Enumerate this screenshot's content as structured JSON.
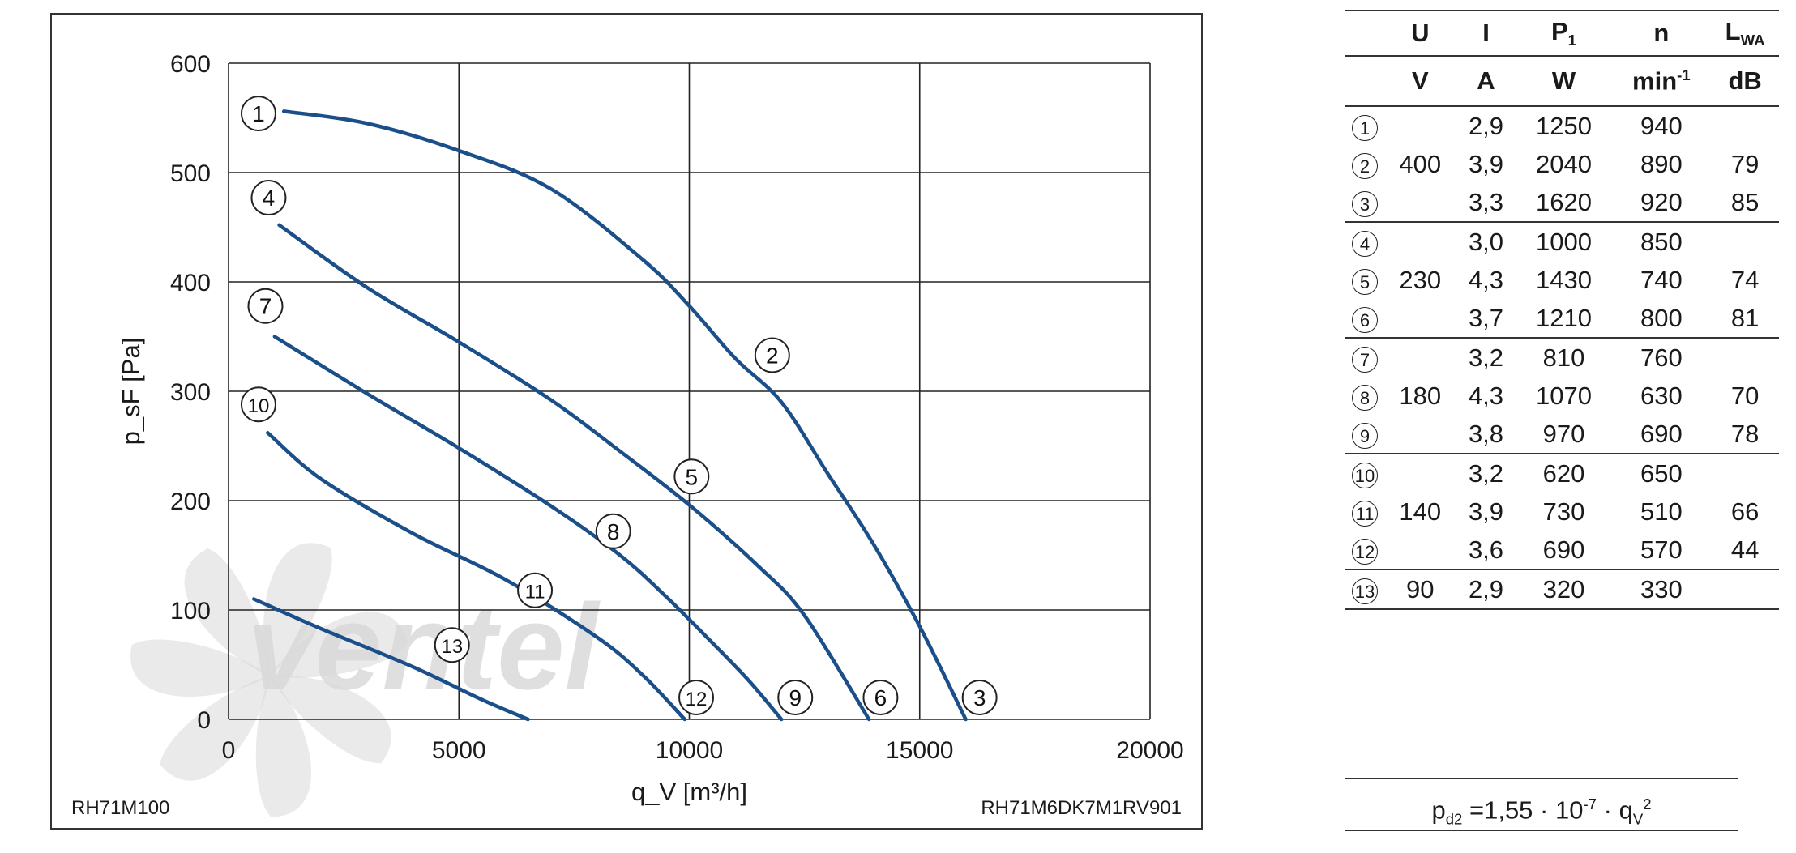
{
  "chart_data": {
    "type": "line",
    "xlabel": "q_V [m³/h]",
    "ylabel": "p_sF [Pa]",
    "xlim": [
      0,
      20000
    ],
    "ylim": [
      0,
      600
    ],
    "x_ticks": [
      "0",
      "5000",
      "10000",
      "15000",
      "20000"
    ],
    "y_ticks": [
      "0",
      "100",
      "200",
      "300",
      "400",
      "500",
      "600"
    ],
    "grid": true,
    "watermark": "ventel",
    "caption_left": "RH71M100",
    "caption_right": "RH71M6DK7M1RV901",
    "colors": {
      "curve": "#1b4f8a",
      "grid": "#222222",
      "watermark": "#d8d8d8",
      "watermark_accent": "#cfe3f4"
    },
    "series": [
      {
        "name": "1-2-3",
        "points": [
          [
            1200,
            556
          ],
          [
            3000,
            545
          ],
          [
            5000,
            520
          ],
          [
            7000,
            485
          ],
          [
            9000,
            420
          ],
          [
            10000,
            378
          ],
          [
            11000,
            330
          ],
          [
            12000,
            290
          ],
          [
            13000,
            225
          ],
          [
            14000,
            160
          ],
          [
            15000,
            85
          ],
          [
            16000,
            0
          ]
        ]
      },
      {
        "name": "4-5-6",
        "points": [
          [
            1100,
            452
          ],
          [
            3000,
            395
          ],
          [
            5000,
            345
          ],
          [
            7000,
            292
          ],
          [
            8500,
            245
          ],
          [
            10000,
            196
          ],
          [
            11500,
            140
          ],
          [
            12500,
            95
          ],
          [
            13900,
            0
          ]
        ]
      },
      {
        "name": "7-8-9",
        "points": [
          [
            1000,
            350
          ],
          [
            3000,
            298
          ],
          [
            5000,
            248
          ],
          [
            7000,
            195
          ],
          [
            8500,
            150
          ],
          [
            9500,
            112
          ],
          [
            10500,
            70
          ],
          [
            11300,
            35
          ],
          [
            12000,
            0
          ]
        ]
      },
      {
        "name": "10-11-12",
        "points": [
          [
            850,
            262
          ],
          [
            2000,
            220
          ],
          [
            4000,
            170
          ],
          [
            6000,
            128
          ],
          [
            8000,
            75
          ],
          [
            9000,
            40
          ],
          [
            9900,
            0
          ]
        ]
      },
      {
        "name": "13",
        "points": [
          [
            550,
            110
          ],
          [
            2000,
            83
          ],
          [
            4000,
            48
          ],
          [
            5500,
            18
          ],
          [
            6500,
            0
          ]
        ]
      }
    ],
    "markers": [
      {
        "label": "1",
        "x": 650,
        "y": 554
      },
      {
        "label": "4",
        "x": 870,
        "y": 477
      },
      {
        "label": "7",
        "x": 800,
        "y": 378
      },
      {
        "label": "10",
        "x": 650,
        "y": 288
      },
      {
        "label": "2",
        "x": 11800,
        "y": 333
      },
      {
        "label": "5",
        "x": 10050,
        "y": 222
      },
      {
        "label": "8",
        "x": 8350,
        "y": 172
      },
      {
        "label": "11",
        "x": 6650,
        "y": 118
      },
      {
        "label": "13",
        "x": 4850,
        "y": 68
      },
      {
        "label": "12",
        "x": 10150,
        "y": 20
      },
      {
        "label": "9",
        "x": 12300,
        "y": 20
      },
      {
        "label": "6",
        "x": 14150,
        "y": 20
      },
      {
        "label": "3",
        "x": 16300,
        "y": 20
      }
    ]
  },
  "table": {
    "headers": [
      "U",
      "I",
      "P1",
      "n",
      "LWA"
    ],
    "units": [
      "V",
      "A",
      "W",
      "min-1",
      "dB"
    ],
    "rows": [
      {
        "id": "1",
        "U": "",
        "I": "2,9",
        "P": "1250",
        "n": "940",
        "L": ""
      },
      {
        "id": "2",
        "U": "400",
        "I": "3,9",
        "P": "2040",
        "n": "890",
        "L": "79"
      },
      {
        "id": "3",
        "U": "",
        "I": "3,3",
        "P": "1620",
        "n": "920",
        "L": "85"
      },
      {
        "id": "4",
        "U": "",
        "I": "3,0",
        "P": "1000",
        "n": "850",
        "L": ""
      },
      {
        "id": "5",
        "U": "230",
        "I": "4,3",
        "P": "1430",
        "n": "740",
        "L": "74"
      },
      {
        "id": "6",
        "U": "",
        "I": "3,7",
        "P": "1210",
        "n": "800",
        "L": "81"
      },
      {
        "id": "7",
        "U": "",
        "I": "3,2",
        "P": "810",
        "n": "760",
        "L": ""
      },
      {
        "id": "8",
        "U": "180",
        "I": "4,3",
        "P": "1070",
        "n": "630",
        "L": "70"
      },
      {
        "id": "9",
        "U": "",
        "I": "3,8",
        "P": "970",
        "n": "690",
        "L": "78"
      },
      {
        "id": "10",
        "U": "",
        "I": "3,2",
        "P": "620",
        "n": "650",
        "L": ""
      },
      {
        "id": "11",
        "U": "140",
        "I": "3,9",
        "P": "730",
        "n": "510",
        "L": "66"
      },
      {
        "id": "12",
        "U": "",
        "I": "3,6",
        "P": "690",
        "n": "570",
        "L": "44"
      },
      {
        "id": "13",
        "U": "90",
        "I": "2,9",
        "P": "320",
        "n": "330",
        "L": ""
      }
    ],
    "group_ends": [
      2,
      5,
      8,
      11,
      12
    ]
  },
  "formula": {
    "lhs": "p",
    "lhs_sub": "d2",
    "eq": " =1,55 · 10",
    "exp": "-7",
    "mul": " · q",
    "q_sub": "V",
    "q_exp": "2"
  }
}
